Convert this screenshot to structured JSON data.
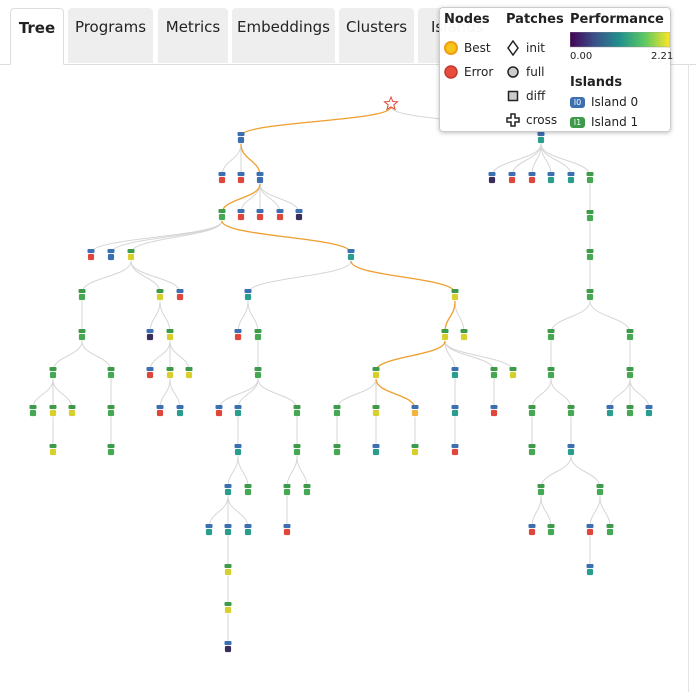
{
  "tabs": [
    "Tree",
    "Programs",
    "Metrics",
    "Embeddings",
    "Clusters",
    "Islands"
  ],
  "legend": {
    "nodes": {
      "title": "Nodes",
      "items": [
        "Best",
        "Error"
      ]
    },
    "patches": {
      "title": "Patches",
      "items": [
        "init",
        "full",
        "diff",
        "cross"
      ]
    },
    "performance": {
      "title": "Performance",
      "min": "0.00",
      "max": "2.21"
    },
    "islands": {
      "title": "Islands",
      "items": [
        {
          "badge": "I0",
          "label": "Island 0"
        },
        {
          "badge": "I1",
          "label": "Island 1"
        }
      ]
    }
  }
}
